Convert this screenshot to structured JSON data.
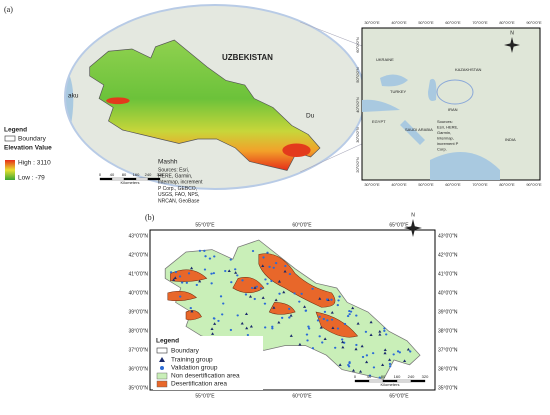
{
  "panel_a": {
    "label": "(a)",
    "map_labels": [
      "UZBEKISTAN",
      "aku",
      "Du",
      "Mashh"
    ],
    "legend": {
      "title": "Legend",
      "boundary": "Boundary",
      "elevation_title": "Elevation Value",
      "high": "High : 3110",
      "low": "Low : -79"
    },
    "sources": [
      "Sources: Esri,",
      "HERE, Garmin,",
      "Intermap, increment",
      "P Corp., GEBCO,",
      "USGS, FAO, NPS,",
      "NRCAN, GeoBase"
    ],
    "scale": {
      "ticks": [
        "0",
        "40",
        "80",
        "160",
        "240",
        "320"
      ],
      "unit": "Kilometers"
    },
    "inset": {
      "lon_labels": [
        "30°0'0\"E",
        "40°0'0\"E",
        "50°0'0\"E",
        "60°0'0\"E",
        "70°0'0\"E",
        "80°0'0\"E",
        "90°0'0\"E"
      ],
      "lat_labels": [
        "60°0'0\"N",
        "50°0'0\"N",
        "40°0'0\"N",
        "30°0'0\"N",
        "20°0'0\"N"
      ],
      "countries": [
        "UKRAINE",
        "KAZAKHSTAN",
        "TURKEY",
        "IRAN",
        "SAUDI ARABIA",
        "EGYPT",
        "INDIA"
      ],
      "sources": [
        "Sources:",
        "Esri, HERE,",
        "Garmin,",
        "Intermap,",
        "increment P",
        "Corp."
      ],
      "north": "N"
    }
  },
  "panel_b": {
    "label": "(b)",
    "lon_labels": [
      "55°0'0\"E",
      "60°0'0\"E",
      "65°0'0\"E"
    ],
    "lat_labels": [
      "43°0'0\"N",
      "42°0'0\"N",
      "41°0'0\"N",
      "40°0'0\"N",
      "39°0'0\"N",
      "38°0'0\"N",
      "37°0'0\"N",
      "36°0'0\"N",
      "35°0'0\"N"
    ],
    "legend": {
      "title": "Legend",
      "items": [
        "Boundary",
        "Training group",
        "Validation group",
        "Non desertification area",
        "Desertification area"
      ]
    },
    "scale": {
      "ticks": [
        "0",
        "40",
        "80",
        "160",
        "240",
        "320"
      ],
      "unit": "Kilometers"
    },
    "north": "N"
  }
}
